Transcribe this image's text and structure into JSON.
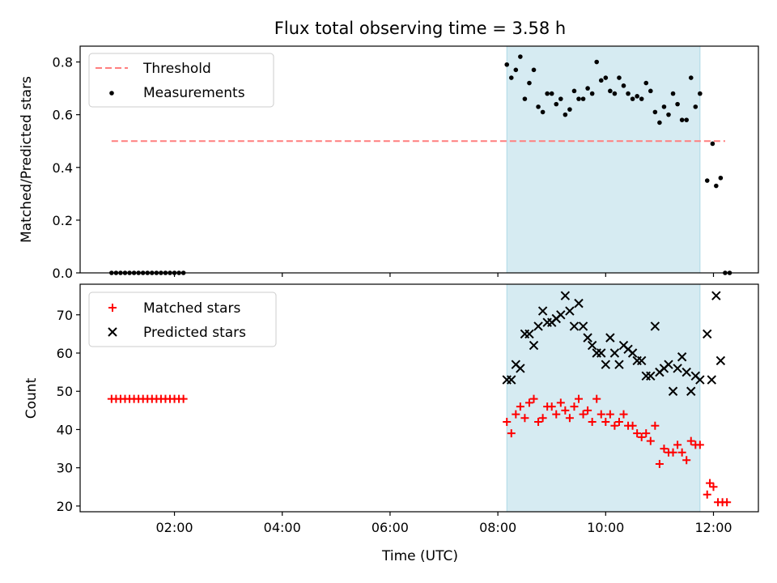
{
  "title": "Flux total observing time = 3.58 h",
  "colors": {
    "threshold": "#ff7f7f",
    "measurement": "#000000",
    "matched": "#ff0000",
    "predicted": "#000000",
    "span": "#add8e6"
  },
  "chart_data": [
    {
      "type": "scatter",
      "ylabel": "Matched/Predicted stars",
      "ylim": [
        0,
        0.86
      ],
      "yticks": [
        0.0,
        0.2,
        0.4,
        0.6,
        0.8
      ],
      "yticklabels": [
        "0.0",
        "0.2",
        "0.4",
        "0.6",
        "0.8"
      ],
      "legend_position": "top-left",
      "threshold": {
        "name": "Threshold",
        "value": 0.5,
        "x_range": [
          "00:50",
          "12:13"
        ]
      },
      "span": {
        "x_range": [
          "08:10",
          "11:45"
        ]
      },
      "series": [
        {
          "name": "Measurements",
          "points": [
            [
              "00:50",
              0
            ],
            [
              "00:55",
              0
            ],
            [
              "01:00",
              0
            ],
            [
              "01:05",
              0
            ],
            [
              "01:10",
              0
            ],
            [
              "01:15",
              0
            ],
            [
              "01:20",
              0
            ],
            [
              "01:25",
              0
            ],
            [
              "01:30",
              0
            ],
            [
              "01:35",
              0
            ],
            [
              "01:40",
              0
            ],
            [
              "01:45",
              0
            ],
            [
              "01:50",
              0
            ],
            [
              "01:55",
              0
            ],
            [
              "02:00",
              0
            ],
            [
              "02:05",
              0
            ],
            [
              "02:10",
              0
            ],
            [
              "08:10",
              0.79
            ],
            [
              "08:15",
              0.74
            ],
            [
              "08:20",
              0.77
            ],
            [
              "08:25",
              0.82
            ],
            [
              "08:30",
              0.66
            ],
            [
              "08:35",
              0.72
            ],
            [
              "08:40",
              0.77
            ],
            [
              "08:45",
              0.63
            ],
            [
              "08:50",
              0.61
            ],
            [
              "08:55",
              0.68
            ],
            [
              "09:00",
              0.68
            ],
            [
              "09:05",
              0.64
            ],
            [
              "09:10",
              0.66
            ],
            [
              "09:15",
              0.6
            ],
            [
              "09:20",
              0.62
            ],
            [
              "09:25",
              0.69
            ],
            [
              "09:30",
              0.66
            ],
            [
              "09:35",
              0.66
            ],
            [
              "09:40",
              0.7
            ],
            [
              "09:45",
              0.68
            ],
            [
              "09:50",
              0.8
            ],
            [
              "09:55",
              0.73
            ],
            [
              "10:00",
              0.74
            ],
            [
              "10:05",
              0.69
            ],
            [
              "10:10",
              0.68
            ],
            [
              "10:15",
              0.74
            ],
            [
              "10:20",
              0.71
            ],
            [
              "10:25",
              0.68
            ],
            [
              "10:30",
              0.66
            ],
            [
              "10:35",
              0.67
            ],
            [
              "10:40",
              0.66
            ],
            [
              "10:45",
              0.72
            ],
            [
              "10:50",
              0.69
            ],
            [
              "10:55",
              0.61
            ],
            [
              "11:00",
              0.57
            ],
            [
              "11:05",
              0.63
            ],
            [
              "11:10",
              0.6
            ],
            [
              "11:15",
              0.68
            ],
            [
              "11:20",
              0.64
            ],
            [
              "11:25",
              0.58
            ],
            [
              "11:30",
              0.58
            ],
            [
              "11:35",
              0.74
            ],
            [
              "11:40",
              0.63
            ],
            [
              "11:45",
              0.68
            ],
            [
              "11:53",
              0.35
            ],
            [
              "11:59",
              0.49
            ],
            [
              "12:03",
              0.33
            ],
            [
              "12:08",
              0.36
            ],
            [
              "12:13",
              0
            ],
            [
              "12:18",
              0
            ]
          ]
        }
      ]
    },
    {
      "type": "scatter",
      "ylabel": "Count",
      "xlabel": "Time (UTC)",
      "ylim": [
        18.5,
        78
      ],
      "yticks": [
        20,
        30,
        40,
        50,
        60,
        70
      ],
      "yticklabels": [
        "20",
        "30",
        "40",
        "50",
        "60",
        "70"
      ],
      "xlim": [
        "00:15",
        "12:50"
      ],
      "xticks": [
        "02:00",
        "04:00",
        "06:00",
        "08:00",
        "10:00",
        "12:00"
      ],
      "legend_position": "top-left",
      "span": {
        "x_range": [
          "08:10",
          "11:45"
        ]
      },
      "series": [
        {
          "name": "Matched stars",
          "marker": "plus",
          "points": [
            [
              "00:50",
              48
            ],
            [
              "00:55",
              48
            ],
            [
              "01:00",
              48
            ],
            [
              "01:05",
              48
            ],
            [
              "01:10",
              48
            ],
            [
              "01:15",
              48
            ],
            [
              "01:20",
              48
            ],
            [
              "01:25",
              48
            ],
            [
              "01:30",
              48
            ],
            [
              "01:35",
              48
            ],
            [
              "01:40",
              48
            ],
            [
              "01:45",
              48
            ],
            [
              "01:50",
              48
            ],
            [
              "01:55",
              48
            ],
            [
              "02:00",
              48
            ],
            [
              "02:05",
              48
            ],
            [
              "02:10",
              48
            ],
            [
              "08:10",
              42
            ],
            [
              "08:15",
              39
            ],
            [
              "08:20",
              44
            ],
            [
              "08:25",
              46
            ],
            [
              "08:30",
              43
            ],
            [
              "08:35",
              47
            ],
            [
              "08:40",
              48
            ],
            [
              "08:45",
              42
            ],
            [
              "08:50",
              43
            ],
            [
              "08:55",
              46
            ],
            [
              "09:00",
              46
            ],
            [
              "09:05",
              44
            ],
            [
              "09:10",
              47
            ],
            [
              "09:15",
              45
            ],
            [
              "09:20",
              43
            ],
            [
              "09:25",
              46
            ],
            [
              "09:30",
              48
            ],
            [
              "09:35",
              44
            ],
            [
              "09:40",
              45
            ],
            [
              "09:45",
              42
            ],
            [
              "09:50",
              48
            ],
            [
              "09:55",
              44
            ],
            [
              "10:00",
              42
            ],
            [
              "10:05",
              44
            ],
            [
              "10:10",
              41
            ],
            [
              "10:15",
              42
            ],
            [
              "10:20",
              44
            ],
            [
              "10:25",
              41
            ],
            [
              "10:30",
              41
            ],
            [
              "10:35",
              39
            ],
            [
              "10:40",
              38
            ],
            [
              "10:45",
              39
            ],
            [
              "10:50",
              37
            ],
            [
              "10:55",
              41
            ],
            [
              "11:00",
              31
            ],
            [
              "11:05",
              35
            ],
            [
              "11:10",
              34
            ],
            [
              "11:15",
              34
            ],
            [
              "11:20",
              36
            ],
            [
              "11:25",
              34
            ],
            [
              "11:30",
              32
            ],
            [
              "11:35",
              37
            ],
            [
              "11:40",
              36
            ],
            [
              "11:45",
              36
            ],
            [
              "11:53",
              23
            ],
            [
              "11:56",
              26
            ],
            [
              "12:00",
              25
            ],
            [
              "12:05",
              21
            ],
            [
              "12:10",
              21
            ],
            [
              "12:15",
              21
            ]
          ]
        },
        {
          "name": "Predicted stars",
          "marker": "x",
          "points": [
            [
              "08:10",
              53
            ],
            [
              "08:15",
              53
            ],
            [
              "08:20",
              57
            ],
            [
              "08:25",
              56
            ],
            [
              "08:30",
              65
            ],
            [
              "08:35",
              65
            ],
            [
              "08:40",
              62
            ],
            [
              "08:45",
              67
            ],
            [
              "08:50",
              71
            ],
            [
              "08:55",
              68
            ],
            [
              "09:00",
              68
            ],
            [
              "09:05",
              69
            ],
            [
              "09:10",
              70
            ],
            [
              "09:15",
              75
            ],
            [
              "09:20",
              71
            ],
            [
              "09:25",
              67
            ],
            [
              "09:30",
              73
            ],
            [
              "09:35",
              67
            ],
            [
              "09:40",
              64
            ],
            [
              "09:45",
              62
            ],
            [
              "09:50",
              60
            ],
            [
              "09:55",
              60
            ],
            [
              "10:00",
              57
            ],
            [
              "10:05",
              64
            ],
            [
              "10:10",
              60
            ],
            [
              "10:15",
              57
            ],
            [
              "10:20",
              62
            ],
            [
              "10:25",
              61
            ],
            [
              "10:30",
              60
            ],
            [
              "10:35",
              58
            ],
            [
              "10:40",
              58
            ],
            [
              "10:45",
              54
            ],
            [
              "10:50",
              54
            ],
            [
              "10:55",
              67
            ],
            [
              "11:00",
              55
            ],
            [
              "11:05",
              56
            ],
            [
              "11:10",
              57
            ],
            [
              "11:15",
              50
            ],
            [
              "11:20",
              56
            ],
            [
              "11:25",
              59
            ],
            [
              "11:30",
              55
            ],
            [
              "11:35",
              50
            ],
            [
              "11:40",
              54
            ],
            [
              "11:45",
              53
            ],
            [
              "11:53",
              65
            ],
            [
              "11:58",
              53
            ],
            [
              "12:03",
              75
            ],
            [
              "12:08",
              58
            ]
          ]
        }
      ]
    }
  ]
}
